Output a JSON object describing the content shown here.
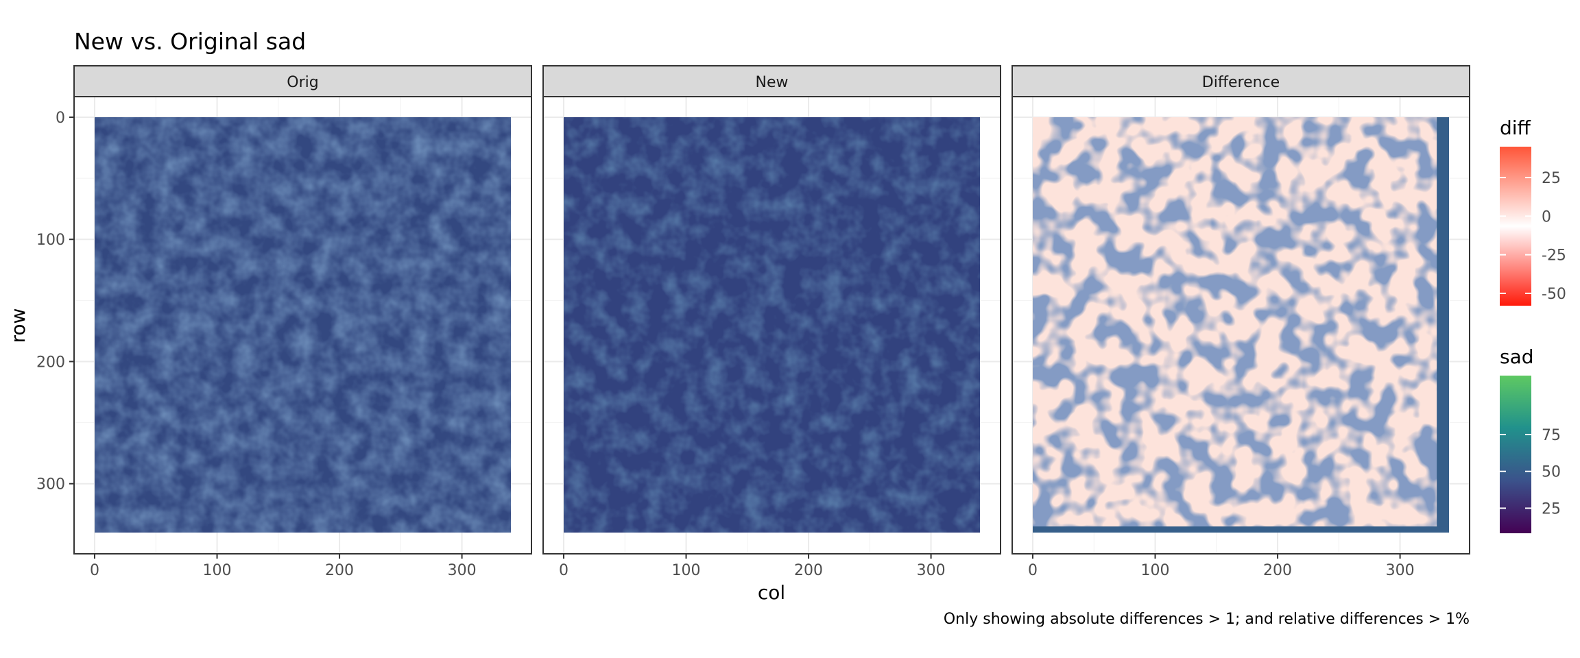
{
  "chart_data": {
    "type": "heatmap",
    "title": "New vs. Original sad",
    "caption": "Only showing absolute differences > 1; and relative differences > 1%",
    "xlabel": "col",
    "ylabel": "row",
    "xlim": [
      0,
      340
    ],
    "ylim": [
      0,
      340
    ],
    "x_ticks": [
      0,
      100,
      200,
      300
    ],
    "y_ticks": [
      0,
      100,
      200,
      300
    ],
    "y_reversed": true,
    "grid": true,
    "panels": [
      {
        "strip": "Orig",
        "fill_variable": "sad"
      },
      {
        "strip": "New",
        "fill_variable": "sad"
      },
      {
        "strip": "Difference",
        "fill_variable": "diff"
      }
    ],
    "legends": [
      {
        "title": "diff",
        "breaks": [
          25,
          0,
          -25,
          -50
        ],
        "range": [
          -58,
          45
        ],
        "colors": [
          "#ff1e0a",
          "#ffffff",
          "#f05a3c"
        ]
      },
      {
        "title": "sad",
        "breaks": [
          75,
          50,
          25
        ],
        "range": [
          8,
          115
        ],
        "colors": [
          "#440154",
          "#3b528b",
          "#21908d",
          "#5dc863"
        ]
      }
    ]
  }
}
